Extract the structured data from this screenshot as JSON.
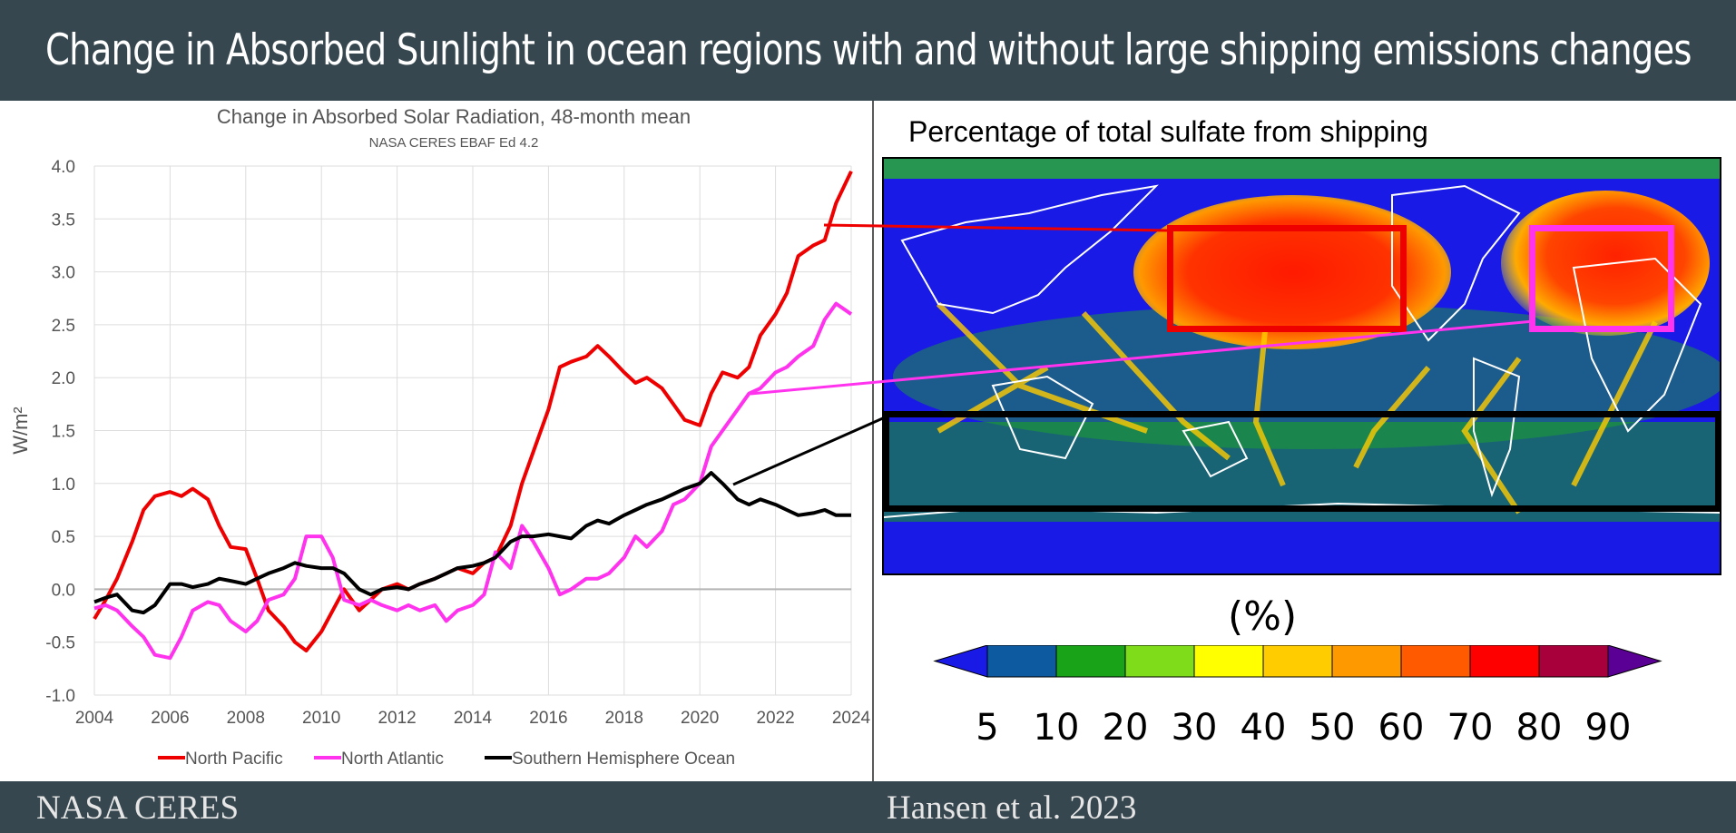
{
  "header": {
    "title": "Change in Absorbed Sunlight in ocean regions with and without large shipping emissions changes"
  },
  "footer": {
    "left": "NASA CERES",
    "right": "Hansen et al. 2023"
  },
  "chart_data": [
    {
      "type": "line",
      "title": "Change in Absorbed Solar Radiation, 48-month mean",
      "subtitle": "NASA CERES EBAF Ed 4.2",
      "xlabel": "",
      "ylabel": "W/m²",
      "xlim": [
        2004,
        2024
      ],
      "ylim": [
        -1.0,
        4.0
      ],
      "x_ticks": [
        "2004",
        "2006",
        "2008",
        "2010",
        "2012",
        "2014",
        "2016",
        "2018",
        "2020",
        "2022",
        "2024"
      ],
      "y_ticks": [
        "4.0",
        "3.5",
        "3.0",
        "2.5",
        "2.0",
        "1.5",
        "1.0",
        "0.5",
        "0.0",
        "-0.5",
        "-1.0"
      ],
      "grid": true,
      "legend_position": "bottom",
      "series": [
        {
          "name": "North Pacific",
          "color": "#ee0000",
          "x": [
            2004.0,
            2004.3,
            2004.6,
            2005.0,
            2005.3,
            2005.6,
            2006.0,
            2006.3,
            2006.6,
            2007.0,
            2007.3,
            2007.6,
            2008.0,
            2008.3,
            2008.6,
            2009.0,
            2009.3,
            2009.6,
            2010.0,
            2010.3,
            2010.6,
            2011.0,
            2011.3,
            2011.6,
            2012.0,
            2012.3,
            2012.6,
            2013.0,
            2013.3,
            2013.6,
            2014.0,
            2014.3,
            2014.6,
            2015.0,
            2015.3,
            2015.6,
            2016.0,
            2016.3,
            2016.6,
            2017.0,
            2017.3,
            2017.6,
            2018.0,
            2018.3,
            2018.6,
            2019.0,
            2019.3,
            2019.6,
            2020.0,
            2020.3,
            2020.6,
            2021.0,
            2021.3,
            2021.6,
            2022.0,
            2022.3,
            2022.6,
            2023.0,
            2023.3,
            2023.6,
            2024.0
          ],
          "values": [
            -0.28,
            -0.1,
            0.1,
            0.45,
            0.75,
            0.88,
            0.92,
            0.88,
            0.95,
            0.85,
            0.6,
            0.4,
            0.38,
            0.1,
            -0.2,
            -0.35,
            -0.5,
            -0.58,
            -0.4,
            -0.2,
            0.0,
            -0.2,
            -0.1,
            0.0,
            0.05,
            0.0,
            0.05,
            0.1,
            0.15,
            0.2,
            0.15,
            0.25,
            0.3,
            0.6,
            1.0,
            1.3,
            1.7,
            2.1,
            2.15,
            2.2,
            2.3,
            2.2,
            2.05,
            1.95,
            2.0,
            1.9,
            1.75,
            1.6,
            1.55,
            1.85,
            2.05,
            2.0,
            2.1,
            2.4,
            2.6,
            2.8,
            3.15,
            3.25,
            3.3,
            3.65,
            3.95
          ]
        },
        {
          "name": "North Atlantic",
          "color": "#ff33ee",
          "x": [
            2004.0,
            2004.3,
            2004.6,
            2005.0,
            2005.3,
            2005.6,
            2006.0,
            2006.3,
            2006.6,
            2007.0,
            2007.3,
            2007.6,
            2008.0,
            2008.3,
            2008.6,
            2009.0,
            2009.3,
            2009.6,
            2010.0,
            2010.3,
            2010.6,
            2011.0,
            2011.3,
            2011.6,
            2012.0,
            2012.3,
            2012.6,
            2013.0,
            2013.3,
            2013.6,
            2014.0,
            2014.3,
            2014.6,
            2015.0,
            2015.3,
            2015.6,
            2016.0,
            2016.3,
            2016.6,
            2017.0,
            2017.3,
            2017.6,
            2018.0,
            2018.3,
            2018.6,
            2019.0,
            2019.3,
            2019.6,
            2020.0,
            2020.3,
            2020.6,
            2021.0,
            2021.3,
            2021.6,
            2022.0,
            2022.3,
            2022.6,
            2023.0,
            2023.3,
            2023.6,
            2024.0
          ],
          "values": [
            -0.18,
            -0.15,
            -0.2,
            -0.35,
            -0.45,
            -0.62,
            -0.65,
            -0.45,
            -0.2,
            -0.12,
            -0.15,
            -0.3,
            -0.4,
            -0.3,
            -0.1,
            -0.05,
            0.1,
            0.5,
            0.5,
            0.3,
            -0.1,
            -0.15,
            -0.1,
            -0.15,
            -0.2,
            -0.15,
            -0.2,
            -0.15,
            -0.3,
            -0.2,
            -0.15,
            -0.05,
            0.35,
            0.2,
            0.6,
            0.45,
            0.2,
            -0.05,
            0.0,
            0.1,
            0.1,
            0.15,
            0.3,
            0.5,
            0.4,
            0.55,
            0.8,
            0.85,
            1.0,
            1.35,
            1.5,
            1.7,
            1.85,
            1.9,
            2.05,
            2.1,
            2.2,
            2.3,
            2.55,
            2.7,
            2.6
          ]
        },
        {
          "name": "Southern Hemisphere Ocean",
          "color": "#000000",
          "x": [
            2004.0,
            2004.3,
            2004.6,
            2005.0,
            2005.3,
            2005.6,
            2006.0,
            2006.3,
            2006.6,
            2007.0,
            2007.3,
            2007.6,
            2008.0,
            2008.3,
            2008.6,
            2009.0,
            2009.3,
            2009.6,
            2010.0,
            2010.3,
            2010.6,
            2011.0,
            2011.3,
            2011.6,
            2012.0,
            2012.3,
            2012.6,
            2013.0,
            2013.3,
            2013.6,
            2014.0,
            2014.3,
            2014.6,
            2015.0,
            2015.3,
            2015.6,
            2016.0,
            2016.3,
            2016.6,
            2017.0,
            2017.3,
            2017.6,
            2018.0,
            2018.3,
            2018.6,
            2019.0,
            2019.3,
            2019.6,
            2020.0,
            2020.3,
            2020.6,
            2021.0,
            2021.3,
            2021.6,
            2022.0,
            2022.3,
            2022.6,
            2023.0,
            2023.3,
            2023.6,
            2024.0
          ],
          "values": [
            -0.12,
            -0.08,
            -0.05,
            -0.2,
            -0.22,
            -0.15,
            0.05,
            0.05,
            0.02,
            0.05,
            0.1,
            0.08,
            0.05,
            0.1,
            0.15,
            0.2,
            0.25,
            0.22,
            0.2,
            0.2,
            0.15,
            0.0,
            -0.05,
            0.0,
            0.02,
            0.0,
            0.05,
            0.1,
            0.15,
            0.2,
            0.22,
            0.25,
            0.3,
            0.45,
            0.5,
            0.5,
            0.52,
            0.5,
            0.48,
            0.6,
            0.65,
            0.62,
            0.7,
            0.75,
            0.8,
            0.85,
            0.9,
            0.95,
            1.0,
            1.1,
            1.0,
            0.85,
            0.8,
            0.85,
            0.8,
            0.75,
            0.7,
            0.72,
            0.75,
            0.7,
            0.7
          ]
        }
      ]
    },
    {
      "type": "heatmap",
      "title": "Percentage of total sulfate from shipping",
      "colorbar_unit": "(%)",
      "colorbar_ticks": [
        "5",
        "10",
        "20",
        "30",
        "40",
        "50",
        "60",
        "70",
        "80",
        "90"
      ],
      "colorbar_colors": [
        "#1a1ae6",
        "#0d5aa0",
        "#18a318",
        "#7fdc1a",
        "#ffff00",
        "#ffcc00",
        "#ff9900",
        "#ff5a00",
        "#ff0000",
        "#a8003a",
        "#5a0094"
      ],
      "highlight_colors": {
        "north_pacific": "#ee0000",
        "north_atlantic": "#ff33ee",
        "southern": "#000000"
      }
    }
  ]
}
